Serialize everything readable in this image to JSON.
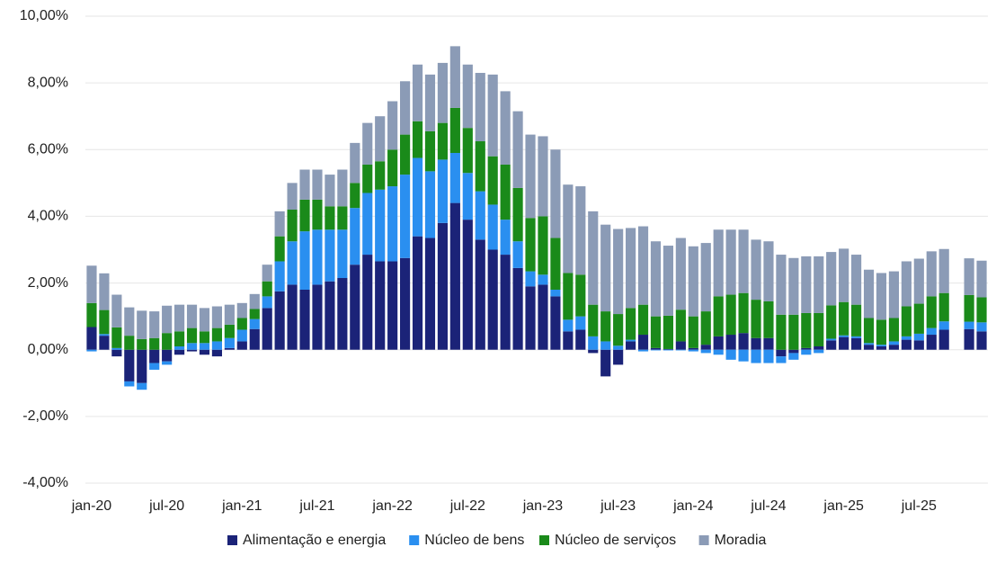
{
  "chart_data": {
    "type": "stacked-bar",
    "categories": [
      "jan-20",
      null,
      null,
      null,
      null,
      null,
      "jul-20",
      null,
      null,
      null,
      null,
      null,
      "jan-21",
      null,
      null,
      null,
      null,
      null,
      "jul-21",
      null,
      null,
      null,
      null,
      null,
      "jan-22",
      null,
      null,
      null,
      null,
      null,
      "jul-22",
      null,
      null,
      null,
      null,
      null,
      "jan-23",
      null,
      null,
      null,
      null,
      null,
      "jul-23",
      null,
      null,
      null,
      null,
      null,
      "jan-24",
      null,
      null,
      null,
      null,
      null,
      "jul-24",
      null,
      null,
      null,
      null,
      null,
      "jan-25",
      null,
      null,
      null,
      null,
      null,
      "jul-25",
      null,
      null,
      null,
      null,
      null
    ],
    "series": [
      {
        "name": "Alimentação e energia",
        "color": "#1b2378",
        "values": [
          0.68,
          0.42,
          -0.2,
          -0.95,
          -1.0,
          -0.4,
          -0.35,
          -0.15,
          -0.05,
          -0.15,
          -0.2,
          0.05,
          0.25,
          0.62,
          1.25,
          1.75,
          1.95,
          1.8,
          1.95,
          2.05,
          2.15,
          2.55,
          2.85,
          2.65,
          2.65,
          2.75,
          3.4,
          3.35,
          3.8,
          4.4,
          3.9,
          3.3,
          3.0,
          2.85,
          2.45,
          1.9,
          1.95,
          1.6,
          0.55,
          0.6,
          -0.1,
          -0.8,
          -0.45,
          0.25,
          0.45,
          0.05,
          0.02,
          0.25,
          0.05,
          0.15,
          0.4,
          0.45,
          0.5,
          0.35,
          0.35,
          -0.2,
          -0.1,
          0.05,
          0.1,
          0.28,
          0.38,
          0.35,
          0.15,
          0.1,
          0.15,
          0.3,
          0.28,
          0.45,
          0.6,
          null,
          0.62,
          0.55
        ]
      },
      {
        "name": "Núcleo de bens",
        "color": "#2a8ff0",
        "values": [
          -0.05,
          0.05,
          0.05,
          -0.15,
          -0.2,
          -0.2,
          -0.1,
          0.1,
          0.2,
          0.2,
          0.25,
          0.3,
          0.35,
          0.3,
          0.35,
          0.9,
          1.3,
          1.75,
          1.65,
          1.55,
          1.45,
          1.7,
          1.85,
          2.15,
          2.25,
          2.5,
          2.35,
          2.0,
          1.9,
          1.5,
          1.4,
          1.45,
          1.35,
          1.05,
          0.8,
          0.45,
          0.3,
          0.2,
          0.35,
          0.4,
          0.4,
          0.25,
          0.12,
          0.05,
          -0.05,
          -0.02,
          -0.02,
          -0.02,
          -0.05,
          -0.1,
          -0.15,
          -0.3,
          -0.35,
          -0.4,
          -0.4,
          -0.2,
          -0.2,
          -0.15,
          -0.1,
          0.05,
          0.05,
          0.05,
          0.05,
          0.05,
          0.1,
          0.1,
          0.2,
          0.2,
          0.25,
          null,
          0.22,
          0.27
        ]
      },
      {
        "name": "Núcleo de serviços",
        "color": "#1a8a1a",
        "values": [
          0.72,
          0.72,
          0.62,
          0.42,
          0.32,
          0.35,
          0.5,
          0.45,
          0.45,
          0.35,
          0.4,
          0.4,
          0.35,
          0.3,
          0.45,
          0.75,
          0.95,
          0.95,
          0.9,
          0.7,
          0.7,
          0.75,
          0.85,
          0.85,
          1.1,
          1.2,
          1.1,
          1.2,
          1.1,
          1.35,
          1.35,
          1.5,
          1.45,
          1.65,
          1.6,
          1.6,
          1.75,
          1.55,
          1.4,
          1.25,
          0.95,
          0.9,
          0.95,
          0.95,
          0.9,
          0.95,
          1.0,
          0.95,
          0.95,
          1.0,
          1.2,
          1.2,
          1.2,
          1.15,
          1.1,
          1.05,
          1.05,
          1.05,
          1.0,
          1.0,
          1.0,
          0.95,
          0.75,
          0.75,
          0.7,
          0.9,
          0.9,
          0.95,
          0.85,
          null,
          0.8,
          0.75
        ]
      },
      {
        "name": "Moradia",
        "color": "#8b9bb6",
        "values": [
          1.12,
          1.1,
          0.98,
          0.85,
          0.85,
          0.8,
          0.82,
          0.8,
          0.7,
          0.7,
          0.65,
          0.6,
          0.45,
          0.45,
          0.5,
          0.75,
          0.8,
          0.9,
          0.9,
          0.95,
          1.1,
          1.2,
          1.25,
          1.35,
          1.45,
          1.6,
          1.7,
          1.7,
          1.8,
          1.85,
          1.9,
          2.05,
          2.45,
          2.2,
          2.3,
          2.5,
          2.4,
          2.65,
          2.65,
          2.65,
          2.8,
          2.6,
          2.55,
          2.4,
          2.35,
          2.25,
          2.1,
          2.15,
          2.1,
          2.05,
          2.0,
          1.95,
          1.9,
          1.8,
          1.8,
          1.8,
          1.7,
          1.7,
          1.7,
          1.6,
          1.6,
          1.5,
          1.45,
          1.4,
          1.4,
          1.35,
          1.35,
          1.35,
          1.32,
          null,
          1.1,
          1.1
        ]
      }
    ],
    "ylim": [
      -4,
      10
    ],
    "yticks": [
      {
        "value": -4,
        "label": "-4,00%"
      },
      {
        "value": -2,
        "label": "-2,00%"
      },
      {
        "value": 0,
        "label": "0,00%"
      },
      {
        "value": 2,
        "label": "2,00%"
      },
      {
        "value": 4,
        "label": "4,00%"
      },
      {
        "value": 6,
        "label": "6,00%"
      },
      {
        "value": 8,
        "label": "8,00%"
      },
      {
        "value": 10,
        "label": "10,00%"
      }
    ],
    "grid": true,
    "legend": "bottom"
  }
}
